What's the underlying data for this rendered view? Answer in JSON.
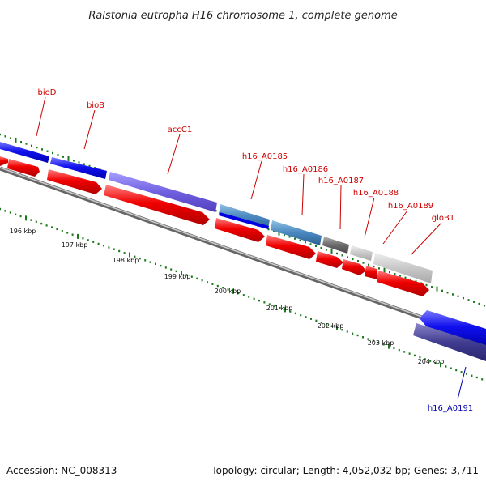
{
  "title": "Ralstonia eutropha H16 chromosome 1, complete genome",
  "footer": {
    "accession": "Accession: NC_008313",
    "summary": "Topology: circular; Length: 4,052,032 bp; Genes: 3,711"
  },
  "colors": {
    "forward_label": "#cc0000",
    "reverse_label": "#0000aa",
    "cds": "#ee0000",
    "backbone": "#8a8a8a",
    "tick": "#1a7a1a"
  },
  "scale_labels": [
    "196 kbp",
    "197 kbp",
    "198 kbp",
    "199 kbp",
    "200 kbp",
    "201 kbp",
    "202 kbp",
    "203 kbp",
    "204 kbp"
  ],
  "genes": [
    {
      "name": "bioD",
      "strand": "forward"
    },
    {
      "name": "bioB",
      "strand": "forward"
    },
    {
      "name": "accC1",
      "strand": "forward"
    },
    {
      "name": "h16_A0185",
      "strand": "forward"
    },
    {
      "name": "h16_A0186",
      "strand": "forward"
    },
    {
      "name": "h16_A0187",
      "strand": "forward"
    },
    {
      "name": "h16_A0188",
      "strand": "forward"
    },
    {
      "name": "h16_A0189",
      "strand": "forward"
    },
    {
      "name": "gloB1",
      "strand": "forward"
    },
    {
      "name": "h16_A0191",
      "strand": "reverse"
    }
  ]
}
